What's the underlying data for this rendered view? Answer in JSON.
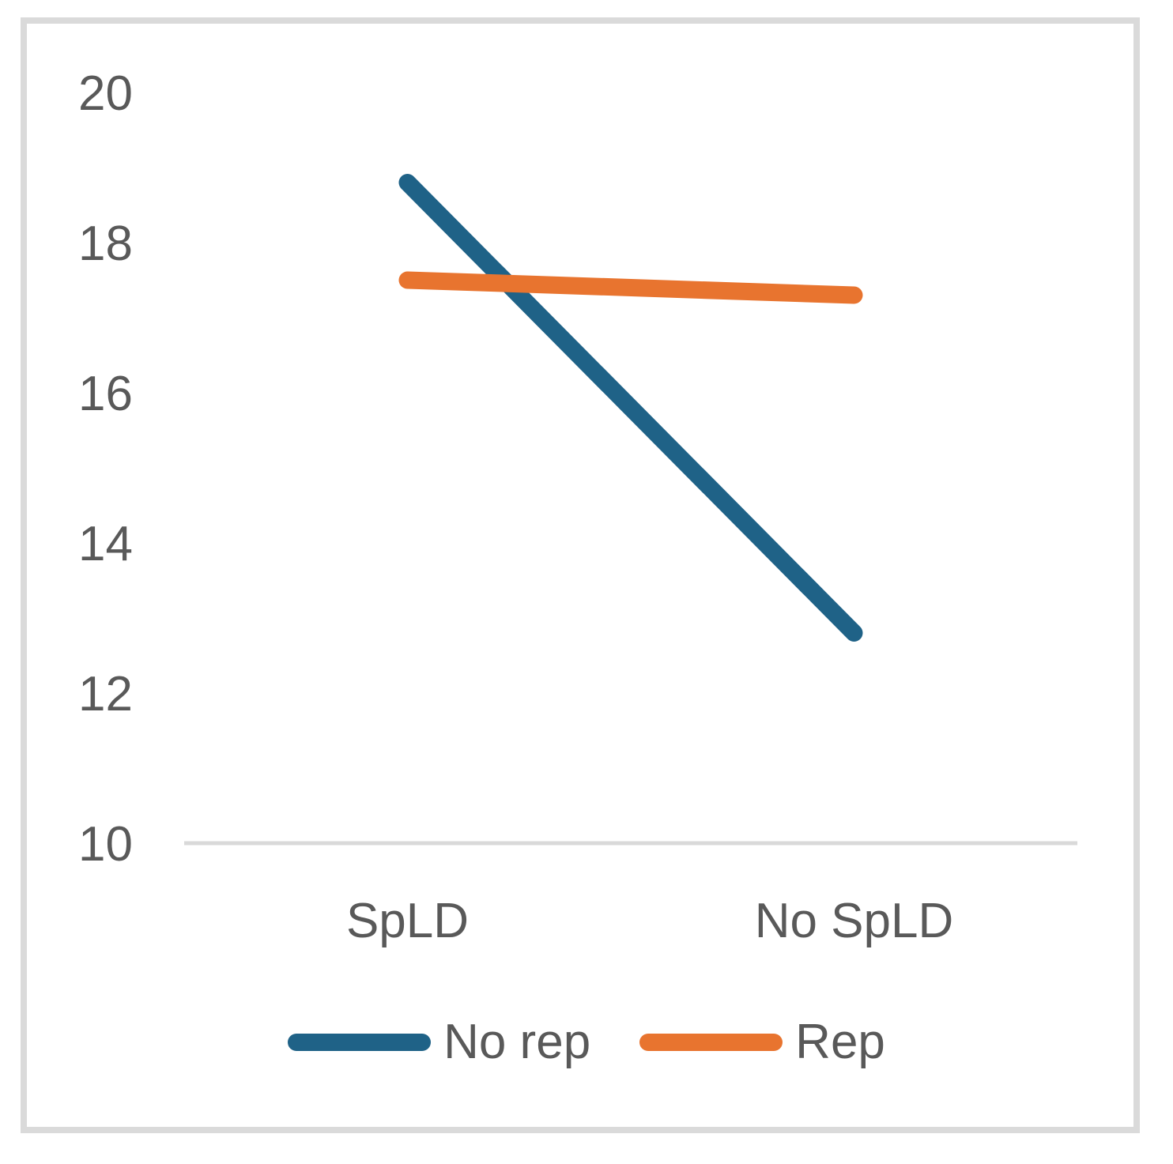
{
  "chart_data": {
    "type": "line",
    "title": "",
    "xlabel": "",
    "ylabel": "",
    "categories": [
      "SpLD",
      "No SpLD"
    ],
    "series": [
      {
        "name": "No rep",
        "values": [
          18.8,
          12.8
        ],
        "color": "#1f6287"
      },
      {
        "name": "Rep",
        "values": [
          17.5,
          17.3
        ],
        "color": "#e8742f"
      }
    ],
    "ylim": [
      10,
      20
    ],
    "yticks": [
      20,
      18,
      16,
      14,
      12,
      10
    ],
    "grid": false,
    "legend_position": "bottom",
    "axis_line_color": "#d9d9d9",
    "text_color": "#595959",
    "frame_border_color": "#dadada"
  }
}
